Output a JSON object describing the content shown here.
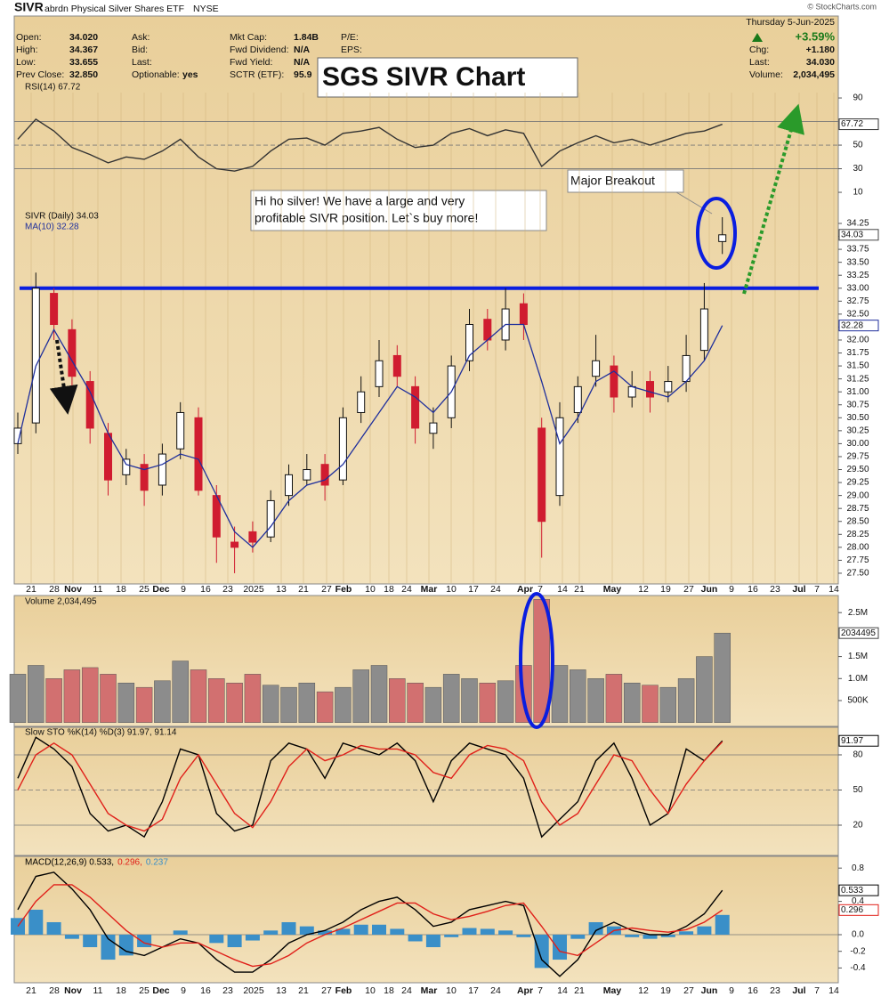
{
  "header": {
    "symbol": "SIVR",
    "name": "abrdn Physical Silver Shares ETF",
    "exchange": "NYSE",
    "columns": [
      [
        {
          "label": "Open:",
          "value": "34.020"
        },
        {
          "label": "High:",
          "value": "34.367"
        },
        {
          "label": "Low:",
          "value": "33.655"
        },
        {
          "label": "Prev Close:",
          "value": "32.850"
        }
      ],
      [
        {
          "label": "Ask:",
          "value": ""
        },
        {
          "label": "Bid:",
          "value": ""
        },
        {
          "label": "Last:",
          "value": ""
        },
        {
          "label": "Optionable:",
          "value": "yes"
        }
      ],
      [
        {
          "label": "Mkt Cap:",
          "value": "1.84B"
        },
        {
          "label": "Fwd Dividend:",
          "value": "N/A"
        },
        {
          "label": "Fwd Yield:",
          "value": "N/A"
        },
        {
          "label": "SCTR (ETF):",
          "value": "95.9"
        }
      ],
      [
        {
          "label": "P/E:",
          "value": ""
        },
        {
          "label": "EPS:",
          "value": ""
        }
      ]
    ],
    "date": "Thursday  5-Jun-2025",
    "change_pct": "+3.59%",
    "right_fields": [
      {
        "label": "Chg:",
        "value": "+1.180"
      },
      {
        "label": "Last:",
        "value": "34.030"
      },
      {
        "label": "Volume:",
        "value": "2,034,495"
      }
    ]
  },
  "watermark": "© StockCharts.com",
  "title_box": "SGS SIVR Chart",
  "annotations": {
    "breakout": "Major Breakout",
    "comment": [
      "Hi ho silver!  We have a large and very",
      "profitable SIVR position.  Let`s buy more!"
    ]
  },
  "x_axis_labels": [
    "21",
    "28",
    "Nov",
    "11",
    "18",
    "25",
    "Dec",
    "9",
    "16",
    "23",
    "2025",
    "13",
    "21",
    "27",
    "Feb",
    "10",
    "18",
    "24",
    "Mar",
    "10",
    "17",
    "24",
    "Apr",
    "7",
    "14",
    "21",
    "May",
    "12",
    "19",
    "27",
    "Jun",
    "9",
    "16",
    "23",
    "Jul",
    "7",
    "14"
  ],
  "chart_data": [
    {
      "type": "line",
      "panel": "rsi",
      "ylim": [
        0,
        100
      ],
      "yticks": [
        10,
        30,
        50,
        90
      ],
      "bands": [
        30,
        50,
        70
      ],
      "series": [
        {
          "name": "RSI(14) 67.72",
          "color": "#333333",
          "values": [
            55,
            72,
            62,
            48,
            42,
            35,
            40,
            38,
            45,
            55,
            40,
            30,
            28,
            32,
            45,
            55,
            56,
            50,
            60,
            62,
            65,
            55,
            48,
            50,
            60,
            64,
            58,
            63,
            60,
            32,
            45,
            52,
            58,
            52,
            55,
            50,
            55,
            60,
            62,
            67.72
          ],
          "last_label": "67.72"
        }
      ]
    },
    {
      "type": "candlestick",
      "panel": "price",
      "ylim": [
        27.3,
        35.1
      ],
      "yticks": [
        {
          "value": 27.5,
          "label": "27.50"
        },
        27.75,
        {
          "value": 28,
          "label": "28.00"
        },
        28.25,
        {
          "value": 28.5,
          "label": "28.50"
        },
        28.75,
        {
          "value": 29,
          "label": "29.00"
        },
        29.25,
        {
          "value": 29.5,
          "label": "29.50"
        },
        29.75,
        {
          "value": 30,
          "label": "30.00"
        },
        30.25,
        {
          "value": 30.5,
          "label": "30.50"
        },
        30.75,
        {
          "value": 31,
          "label": "31.00"
        },
        31.25,
        {
          "value": 31.5,
          "label": "31.50"
        },
        31.75,
        {
          "value": 32,
          "label": "32.00"
        },
        32.25,
        {
          "value": 32.5,
          "label": "32.50"
        },
        32.75,
        {
          "value": 33,
          "label": "33.00"
        },
        33.25,
        {
          "value": 33.5,
          "label": "33.50"
        },
        33.75,
        {
          "value": 34,
          "label": "34.00"
        },
        34.25
      ],
      "hline": {
        "value": 33.0,
        "color": "#0a1ee0"
      },
      "candles": {
        "name": "SIVR (Daily) 34.03",
        "up_color": "#ffffff",
        "down_color": "#d01c30",
        "last_label": "34.03",
        "open": [
          30.0,
          30.4,
          32.9,
          32.2,
          31.2,
          30.2,
          29.4,
          29.6,
          29.2,
          29.9,
          30.5,
          29.0,
          28.1,
          28.3,
          28.2,
          29.0,
          29.3,
          29.6,
          29.3,
          30.6,
          31.1,
          31.7,
          31.1,
          30.2,
          30.5,
          31.6,
          32.4,
          32.0,
          32.7,
          30.3,
          29.0,
          30.6,
          31.3,
          31.5,
          30.9,
          31.2,
          31.0,
          31.2,
          31.8,
          33.9
        ],
        "high": [
          30.6,
          33.3,
          33.0,
          32.4,
          31.4,
          30.4,
          29.9,
          29.8,
          30.0,
          30.8,
          30.7,
          29.2,
          28.4,
          28.5,
          29.1,
          29.6,
          29.8,
          29.8,
          30.7,
          31.3,
          32.0,
          31.9,
          31.3,
          30.7,
          31.7,
          32.6,
          32.6,
          33.0,
          32.9,
          30.5,
          30.8,
          31.3,
          32.1,
          31.7,
          31.4,
          31.4,
          31.5,
          32.1,
          33.1,
          34.37
        ],
        "low": [
          29.8,
          30.2,
          32.0,
          31.1,
          30.0,
          29.0,
          29.2,
          28.8,
          29.0,
          29.7,
          29.0,
          27.7,
          27.5,
          27.9,
          28.1,
          28.8,
          29.2,
          28.9,
          29.2,
          30.4,
          30.9,
          31.1,
          30.0,
          29.9,
          30.3,
          31.4,
          31.8,
          31.8,
          32.0,
          27.8,
          28.8,
          30.4,
          31.1,
          30.6,
          30.7,
          30.6,
          30.8,
          31.0,
          31.6,
          33.66
        ],
        "close": [
          30.3,
          33.0,
          32.3,
          31.3,
          30.3,
          29.3,
          29.7,
          29.1,
          29.8,
          30.6,
          29.1,
          28.2,
          28.0,
          28.1,
          28.9,
          29.4,
          29.5,
          29.2,
          30.5,
          31.0,
          31.6,
          31.3,
          30.3,
          30.4,
          31.5,
          32.3,
          32.0,
          32.6,
          32.3,
          28.5,
          30.5,
          31.1,
          31.6,
          30.9,
          31.1,
          30.9,
          31.2,
          31.7,
          32.6,
          34.03
        ]
      },
      "series": [
        {
          "name": "MA(10) 32.28",
          "color": "#1f2f9c",
          "last_label": "32.28",
          "values": [
            30.0,
            31.5,
            32.2,
            31.6,
            31.0,
            30.2,
            29.6,
            29.5,
            29.6,
            29.8,
            29.7,
            29.0,
            28.3,
            28.0,
            28.4,
            28.9,
            29.2,
            29.3,
            29.6,
            30.1,
            30.6,
            31.1,
            30.9,
            30.6,
            31.0,
            31.7,
            32.0,
            32.3,
            32.3,
            31.2,
            30.0,
            30.5,
            31.2,
            31.4,
            31.1,
            31.0,
            30.9,
            31.2,
            31.6,
            32.28
          ]
        }
      ]
    },
    {
      "type": "bar",
      "panel": "volume",
      "ylim": [
        0,
        2850000
      ],
      "yticks": [
        {
          "value": 500000,
          "label": "500K"
        },
        {
          "value": 1000000,
          "label": "1.0M"
        },
        {
          "value": 1500000,
          "label": "1.5M"
        },
        {
          "value": 2500000,
          "label": "2.5M"
        }
      ],
      "series": [
        {
          "name": "Volume 2,034,495",
          "up_color": "#8c8c8c",
          "down_color": "#d27070",
          "last_label": "2034495",
          "values": [
            1100000,
            1300000,
            1000000,
            1200000,
            1250000,
            1100000,
            900000,
            800000,
            950000,
            1400000,
            1200000,
            1000000,
            900000,
            1100000,
            850000,
            800000,
            900000,
            700000,
            800000,
            1200000,
            1300000,
            1000000,
            900000,
            800000,
            1100000,
            1000000,
            900000,
            950000,
            1300000,
            2800000,
            1300000,
            1200000,
            1000000,
            1100000,
            900000,
            850000,
            800000,
            1000000,
            1500000,
            2034495
          ]
        }
      ]
    },
    {
      "type": "line",
      "panel": "stoch",
      "ylim": [
        -5,
        103
      ],
      "yticks": [
        20,
        50,
        80
      ],
      "bands": [
        20,
        50,
        80
      ],
      "series": [
        {
          "name": "Slow STO %K(14) %D(3) 91.97, 91.14",
          "color": "#000000",
          "last_label": "91.97",
          "values": [
            60,
            95,
            85,
            70,
            30,
            15,
            20,
            10,
            40,
            85,
            80,
            30,
            15,
            20,
            75,
            90,
            85,
            60,
            90,
            85,
            80,
            90,
            75,
            40,
            75,
            90,
            85,
            80,
            60,
            10,
            25,
            40,
            75,
            90,
            60,
            20,
            30,
            85,
            75,
            91.97
          ]
        },
        {
          "color": "#e0201a",
          "values": [
            50,
            80,
            90,
            80,
            55,
            30,
            20,
            15,
            25,
            60,
            80,
            55,
            30,
            18,
            40,
            70,
            85,
            75,
            80,
            88,
            85,
            85,
            80,
            65,
            60,
            80,
            88,
            85,
            75,
            40,
            20,
            30,
            55,
            80,
            75,
            50,
            30,
            55,
            75,
            91.14
          ]
        }
      ]
    },
    {
      "type": "line",
      "panel": "macd",
      "ylim": [
        -0.57,
        0.94
      ],
      "yticks": [
        {
          "value": -0.4,
          "label": "-0.4"
        },
        {
          "value": -0.2,
          "label": "-0.2"
        },
        {
          "value": 0,
          "label": "0.0"
        },
        0.4,
        0.8
      ],
      "bands": [
        0
      ],
      "legend_parts": [
        {
          "text": "MACD(12,26,9) 0.533,",
          "color": "#000000"
        },
        {
          "text": "0.296,",
          "color": "#e0201a"
        },
        {
          "text": "0.237",
          "color": "#3a8fc8"
        }
      ],
      "histogram": {
        "color": "#3a8fc8",
        "values": [
          0.2,
          0.3,
          0.15,
          -0.05,
          -0.15,
          -0.3,
          -0.25,
          -0.15,
          0,
          0.05,
          0,
          -0.1,
          -0.15,
          -0.07,
          0.05,
          0.15,
          0.1,
          0.05,
          0.07,
          0.12,
          0.12,
          0.07,
          -0.08,
          -0.15,
          -0.03,
          0.08,
          0.07,
          0.05,
          -0.03,
          -0.4,
          -0.3,
          -0.05,
          0.15,
          0.1,
          -0.03,
          -0.05,
          -0.03,
          0.04,
          0.1,
          0.237
        ]
      },
      "series": [
        {
          "color": "#000000",
          "last_label": "0.533",
          "values": [
            0.3,
            0.7,
            0.75,
            0.55,
            0.3,
            -0.05,
            -0.2,
            -0.25,
            -0.15,
            -0.05,
            -0.1,
            -0.3,
            -0.45,
            -0.45,
            -0.3,
            -0.1,
            0.0,
            0.05,
            0.15,
            0.3,
            0.4,
            0.45,
            0.3,
            0.1,
            0.15,
            0.3,
            0.35,
            0.4,
            0.35,
            -0.3,
            -0.5,
            -0.3,
            0.05,
            0.15,
            0.05,
            0.0,
            0.0,
            0.1,
            0.25,
            0.533
          ]
        },
        {
          "color": "#e0201a",
          "last_label": "0.296",
          "values": [
            0.1,
            0.4,
            0.6,
            0.6,
            0.45,
            0.25,
            0.05,
            -0.1,
            -0.15,
            -0.1,
            -0.1,
            -0.2,
            -0.3,
            -0.38,
            -0.35,
            -0.25,
            -0.1,
            0.0,
            0.08,
            0.18,
            0.28,
            0.38,
            0.38,
            0.25,
            0.18,
            0.22,
            0.28,
            0.35,
            0.38,
            0.1,
            -0.2,
            -0.25,
            -0.1,
            0.05,
            0.08,
            0.05,
            0.03,
            0.06,
            0.15,
            0.296
          ]
        }
      ]
    }
  ]
}
